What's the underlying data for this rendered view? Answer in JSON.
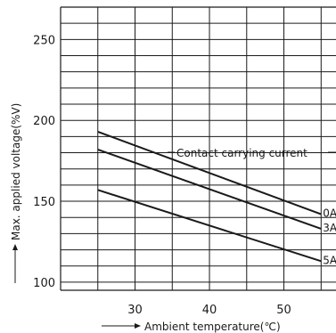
{
  "chart_data": {
    "type": "line",
    "xlabel": "Ambient temperature(℃)",
    "ylabel": "Max. applied voltage(%V)",
    "xticks": [
      "30",
      "40",
      "50"
    ],
    "yticks": [
      "100",
      "150",
      "200",
      "250"
    ],
    "xlim": [
      20,
      57
    ],
    "ylim": [
      95,
      270
    ],
    "grid": true,
    "annotation": "Contact carrying current",
    "series": [
      {
        "name": "0A",
        "x": [
          25,
          55
        ],
        "values": [
          193,
          142
        ]
      },
      {
        "name": "3A",
        "x": [
          25,
          55
        ],
        "values": [
          182,
          133
        ]
      },
      {
        "name": "5A",
        "x": [
          25,
          55
        ],
        "values": [
          157,
          113
        ]
      }
    ]
  }
}
